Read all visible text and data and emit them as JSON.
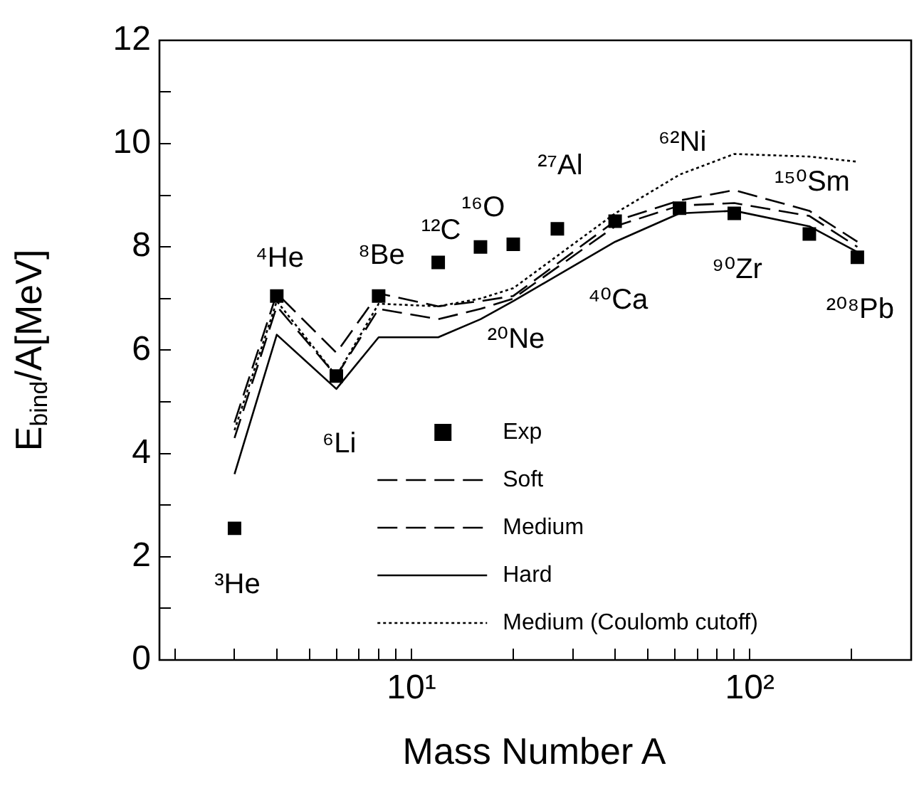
{
  "chart_data": {
    "type": "line",
    "xlabel": "Mass Number A",
    "ylabel": "E$_{bind}$/A[MeV]",
    "log": "x",
    "xlim": [
      1.8,
      300
    ],
    "ylim": [
      0,
      12
    ],
    "xticks": [
      {
        "value": 2,
        "label": null
      },
      {
        "value": 3,
        "label": null
      },
      {
        "value": 4,
        "label": null
      },
      {
        "value": 5,
        "label": null
      },
      {
        "value": 6,
        "label": null
      },
      {
        "value": 7,
        "label": null
      },
      {
        "value": 8,
        "label": null
      },
      {
        "value": 9,
        "label": null
      },
      {
        "value": 10,
        "label": "10¹"
      },
      {
        "value": 20,
        "label": null
      },
      {
        "value": 30,
        "label": null
      },
      {
        "value": 40,
        "label": null
      },
      {
        "value": 50,
        "label": null
      },
      {
        "value": 60,
        "label": null
      },
      {
        "value": 70,
        "label": null
      },
      {
        "value": 80,
        "label": null
      },
      {
        "value": 90,
        "label": null
      },
      {
        "value": 100,
        "label": "10²"
      },
      {
        "value": 200,
        "label": null
      }
    ],
    "yticks": [
      0,
      {
        "value": 1,
        "label": null
      },
      2,
      {
        "value": 3,
        "label": null
      },
      4,
      {
        "value": 5,
        "label": null
      },
      6,
      {
        "value": 7,
        "label": null
      },
      8,
      {
        "value": 9,
        "label": null
      },
      10,
      {
        "value": 11,
        "label": null
      },
      12
    ],
    "grid": false,
    "legend": "bottom",
    "series": [
      {
        "name": "Exp",
        "type": "scatter",
        "marker": "square",
        "color": "#000000",
        "x": [
          3,
          4,
          6,
          8,
          12,
          16,
          20,
          27,
          40,
          62,
          90,
          150,
          208
        ],
        "values": [
          2.55,
          7.05,
          5.5,
          7.05,
          7.7,
          8.0,
          8.05,
          8.35,
          8.5,
          8.75,
          8.65,
          8.25,
          7.8
        ]
      },
      {
        "name": "Soft",
        "type": "line",
        "line_style": "dashed",
        "color": "#000000",
        "x": [
          3,
          4,
          6,
          8,
          12,
          16,
          20,
          40,
          62,
          90,
          150,
          208
        ],
        "values": [
          4.6,
          7.1,
          5.95,
          7.1,
          6.85,
          6.95,
          7.05,
          8.5,
          8.9,
          9.1,
          8.7,
          8.1
        ]
      },
      {
        "name": "Medium",
        "type": "line",
        "line_style": "dashed",
        "color": "#000000",
        "x": [
          3,
          4,
          6,
          8,
          12,
          16,
          20,
          40,
          62,
          90,
          150,
          208
        ],
        "values": [
          4.3,
          6.85,
          5.5,
          6.8,
          6.6,
          6.8,
          7.0,
          8.4,
          8.8,
          8.85,
          8.6,
          8.0
        ]
      },
      {
        "name": "Hard",
        "type": "line",
        "line_style": "solid",
        "color": "#000000",
        "x": [
          3,
          4,
          6,
          8,
          12,
          16,
          20,
          40,
          62,
          90,
          150,
          208
        ],
        "values": [
          3.6,
          6.3,
          5.25,
          6.25,
          6.25,
          6.6,
          6.95,
          8.1,
          8.65,
          8.7,
          8.4,
          7.9
        ]
      },
      {
        "name": "Medium (Coulomb cutoff)",
        "type": "line",
        "line_style": "dotted",
        "color": "#000000",
        "x": [
          3,
          4,
          6,
          8,
          12,
          16,
          20,
          40,
          62,
          90,
          150,
          208
        ],
        "values": [
          4.45,
          6.95,
          5.5,
          6.9,
          6.85,
          7.0,
          7.2,
          8.65,
          9.4,
          9.8,
          9.75,
          9.65
        ]
      }
    ],
    "annotations": [
      {
        "text": "³He",
        "x": 3,
        "y": 2.55
      },
      {
        "text": "⁴He",
        "x": 4,
        "y": 7.05
      },
      {
        "text": "⁶Li",
        "x": 6,
        "y": 5.5
      },
      {
        "text": "⁸Be",
        "x": 8,
        "y": 7.05
      },
      {
        "text": "¹²C",
        "x": 12,
        "y": 7.7
      },
      {
        "text": "¹⁶O",
        "x": 16,
        "y": 8.0
      },
      {
        "text": "²⁰Ne",
        "x": 20,
        "y": 8.05
      },
      {
        "text": "²⁷Al",
        "x": 27,
        "y": 8.35
      },
      {
        "text": "⁴⁰Ca",
        "x": 40,
        "y": 8.5
      },
      {
        "text": "⁶²Ni",
        "x": 62,
        "y": 8.75
      },
      {
        "text": "⁹⁰Zr",
        "x": 90,
        "y": 8.65
      },
      {
        "text": "¹⁵⁰Sm",
        "x": 150,
        "y": 8.25
      },
      {
        "text": "²⁰⁸Pb",
        "x": 208,
        "y": 7.8
      }
    ]
  }
}
